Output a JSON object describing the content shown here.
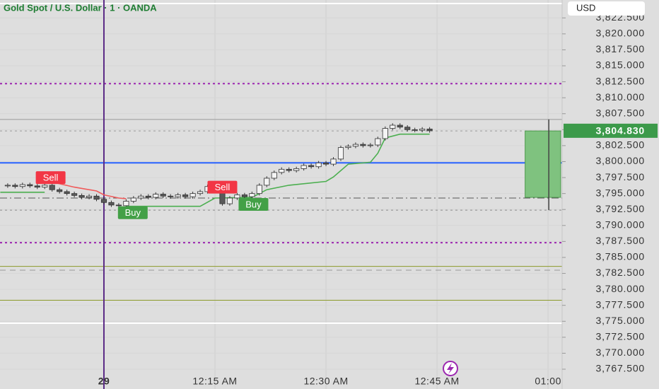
{
  "chart_data": {
    "type": "candlestick",
    "title": "Gold Spot / U.S. Dollar · 1 · OANDA",
    "currency": "USD",
    "grid": true,
    "up_color": "#f4f4f4",
    "down_color": "#5a5a5a",
    "xlim": [
      -14.04,
      61.9
    ],
    "xticks": [
      {
        "value": 0,
        "label": "29"
      },
      {
        "value": 15,
        "label": "12:15 AM"
      },
      {
        "value": 30,
        "label": "12:30 AM"
      },
      {
        "value": 45,
        "label": "12:45 AM"
      },
      {
        "value": 60,
        "label": "01:00"
      }
    ],
    "ylim": [
      3764.4,
      3825.3
    ],
    "yticks": [
      {
        "value": 3822.5,
        "label": "3,822.500"
      },
      {
        "value": 3820,
        "label": "3,820.000"
      },
      {
        "value": 3817.5,
        "label": "3,817.500"
      },
      {
        "value": 3815,
        "label": "3,815.000"
      },
      {
        "value": 3812.5,
        "label": "3,812.500"
      },
      {
        "value": 3810,
        "label": "3,810.000"
      },
      {
        "value": 3807.5,
        "label": "3,807.500"
      },
      {
        "value": 3805,
        "label": "3,805.000"
      },
      {
        "value": 3802.5,
        "label": "3,802.500"
      },
      {
        "value": 3800,
        "label": "3,800.000"
      },
      {
        "value": 3797.5,
        "label": "3,797.500"
      },
      {
        "value": 3795,
        "label": "3,795.000"
      },
      {
        "value": 3792.5,
        "label": "3,792.500"
      },
      {
        "value": 3790,
        "label": "3,790.000"
      },
      {
        "value": 3787.5,
        "label": "3,787.500"
      },
      {
        "value": 3785,
        "label": "3,785.000"
      },
      {
        "value": 3782.5,
        "label": "3,782.500"
      },
      {
        "value": 3780,
        "label": "3,780.000"
      },
      {
        "value": 3777.5,
        "label": "3,777.500"
      },
      {
        "value": 3775,
        "label": "3,775.000"
      },
      {
        "value": 3772.5,
        "label": "3,772.500"
      },
      {
        "value": 3770,
        "label": "3,770.000"
      },
      {
        "value": 3767.5,
        "label": "3,767.500"
      }
    ],
    "last_price": {
      "value": 3804.83,
      "label": "3,804.830",
      "color": "#3c9a4a"
    },
    "x": [
      -13,
      -12,
      -11,
      -10,
      -9,
      -8,
      -7,
      -6,
      -5,
      -4,
      -3,
      -2,
      -1,
      0,
      1,
      2,
      3,
      4,
      5,
      6,
      7,
      8,
      9,
      10,
      11,
      12,
      13,
      14,
      15,
      16,
      17,
      18,
      19,
      20,
      21,
      22,
      23,
      24,
      25,
      26,
      27,
      28,
      29,
      30,
      31,
      32,
      33,
      34,
      35,
      36,
      37,
      38,
      39,
      40,
      41,
      42,
      43,
      44
    ],
    "open": [
      3796.2,
      3796.3,
      3796.1,
      3796.4,
      3796.2,
      3796.0,
      3796.3,
      3795.6,
      3795.3,
      3795.0,
      3794.7,
      3794.4,
      3794.6,
      3794.1,
      3793.6,
      3793.2,
      3793.1,
      3793.8,
      3794.3,
      3794.6,
      3794.4,
      3794.9,
      3794.6,
      3794.5,
      3794.8,
      3794.5,
      3795.0,
      3795.3,
      3796.1,
      3795.6,
      3793.4,
      3794.3,
      3794.8,
      3794.5,
      3795.0,
      3796.3,
      3797.4,
      3798.3,
      3798.8,
      3798.6,
      3798.9,
      3799.4,
      3799.2,
      3799.8,
      3799.6,
      3800.4,
      3802.2,
      3802.4,
      3802.7,
      3802.5,
      3802.6,
      3803.6,
      3805.2,
      3805.7,
      3805.4,
      3805.0,
      3804.9,
      3805.1
    ],
    "high": [
      3796.6,
      3796.6,
      3796.7,
      3796.7,
      3796.5,
      3796.6,
      3796.6,
      3795.9,
      3795.6,
      3795.3,
      3795.0,
      3794.9,
      3794.9,
      3794.4,
      3793.9,
      3793.5,
      3794.1,
      3794.6,
      3794.9,
      3794.9,
      3795.2,
      3795.2,
      3794.9,
      3795.1,
      3795.1,
      3795.3,
      3795.6,
      3796.4,
      3796.4,
      3795.9,
      3794.6,
      3795.1,
      3795.1,
      3795.3,
      3796.6,
      3797.7,
      3798.6,
      3799.1,
      3799.1,
      3799.2,
      3799.7,
      3799.7,
      3800.1,
      3800.1,
      3800.7,
      3802.5,
      3802.7,
      3803.0,
      3803.0,
      3802.9,
      3803.9,
      3805.5,
      3806.0,
      3806.0,
      3805.7,
      3805.3,
      3805.4,
      3805.4
    ],
    "low": [
      3795.9,
      3795.8,
      3795.8,
      3795.9,
      3795.7,
      3795.7,
      3795.3,
      3795.0,
      3794.7,
      3794.4,
      3794.1,
      3794.1,
      3793.8,
      3793.3,
      3792.9,
      3792.8,
      3792.8,
      3793.5,
      3794.0,
      3794.1,
      3794.1,
      3794.3,
      3794.2,
      3794.2,
      3794.2,
      3794.2,
      3794.7,
      3795.0,
      3795.3,
      3793.1,
      3793.1,
      3794.0,
      3794.2,
      3794.2,
      3794.7,
      3796.0,
      3797.1,
      3798.0,
      3798.3,
      3798.3,
      3798.6,
      3798.9,
      3798.9,
      3799.3,
      3799.3,
      3800.1,
      3801.9,
      3802.1,
      3802.2,
      3802.2,
      3802.3,
      3803.3,
      3804.9,
      3805.1,
      3804.7,
      3804.6,
      3804.6,
      3804.53
    ],
    "close": [
      3796.3,
      3796.1,
      3796.4,
      3796.2,
      3796.0,
      3796.3,
      3795.6,
      3795.3,
      3795.0,
      3794.7,
      3794.4,
      3794.6,
      3794.1,
      3793.6,
      3793.2,
      3793.1,
      3793.8,
      3794.3,
      3794.6,
      3794.4,
      3794.9,
      3794.6,
      3794.5,
      3794.8,
      3794.5,
      3795.0,
      3795.3,
      3796.1,
      3795.6,
      3793.4,
      3794.3,
      3794.8,
      3794.5,
      3795.0,
      3796.3,
      3797.4,
      3798.3,
      3798.8,
      3798.6,
      3798.9,
      3799.4,
      3799.2,
      3799.8,
      3799.6,
      3800.4,
      3802.2,
      3802.4,
      3802.7,
      3802.5,
      3802.6,
      3803.6,
      3805.2,
      3805.7,
      3805.4,
      3805.0,
      3804.9,
      3805.1,
      3804.83
    ],
    "trend": [
      {
        "color": "#4caf50",
        "x": [
          -14,
          -8
        ],
        "values": [
          3795.2,
          3795.2
        ]
      },
      {
        "color": "#f05a5a",
        "x": [
          -7,
          -4,
          -1,
          0,
          2,
          3
        ],
        "values": [
          3796.8,
          3796.0,
          3795.4,
          3794.8,
          3794.3,
          3794.2
        ]
      },
      {
        "color": "#4caf50",
        "x": [
          3,
          13,
          15,
          20,
          22,
          25,
          30,
          31,
          33,
          36,
          37,
          38,
          40,
          44
        ],
        "values": [
          3793.0,
          3793.0,
          3794.3,
          3794.4,
          3795.6,
          3796.3,
          3796.9,
          3797.6,
          3799.6,
          3799.9,
          3801.3,
          3803.7,
          3804.3,
          3804.3
        ]
      }
    ],
    "levels": [
      {
        "value": 3824.75,
        "color": "#ffffff",
        "style": "solid"
      },
      {
        "value": 3812.2,
        "color": "#9c27b0",
        "style": "dotted"
      },
      {
        "value": 3806.6,
        "color": "#9a9a9a",
        "style": "solid"
      },
      {
        "value": 3804.8,
        "color": "#9a9a9a",
        "style": "dotted"
      },
      {
        "value": 3799.8,
        "color": "#2962ff",
        "style": "solid"
      },
      {
        "value": 3794.3,
        "color": "#555555",
        "style": "dashdot"
      },
      {
        "value": 3792.4,
        "color": "#8a8a8a",
        "style": "dotted"
      },
      {
        "value": 3787.3,
        "color": "#9c27b0",
        "style": "dotted"
      },
      {
        "value": 3783.6,
        "color": "#8c9a2a",
        "style": "solid"
      },
      {
        "value": 3783.0,
        "color": "#999999",
        "style": "dashed"
      },
      {
        "value": 3778.3,
        "color": "#8c9a2a",
        "style": "solid"
      },
      {
        "value": 3774.7,
        "color": "#ffffff",
        "style": "solid"
      }
    ],
    "vline": {
      "x": 0,
      "color": "#5b2a86"
    },
    "range_box": {
      "x": [
        56.9,
        61.7
      ],
      "top": 3804.8,
      "bottom": 3794.4,
      "line_x": 60.1,
      "high": 3806.6,
      "low": 3792.4,
      "color": "#7fc27f"
    },
    "signals": [
      {
        "text": "Sell",
        "x": -7.2,
        "y": 3797.5,
        "color": "#f23645"
      },
      {
        "text": "Sell",
        "x": 16,
        "y": 3796.0,
        "color": "#f23645"
      },
      {
        "text": "Buy",
        "x": 3.9,
        "y": 3792.0,
        "color": "#43a047"
      },
      {
        "text": "Buy",
        "x": 20.2,
        "y": 3793.3,
        "color": "#43a047"
      }
    ]
  }
}
